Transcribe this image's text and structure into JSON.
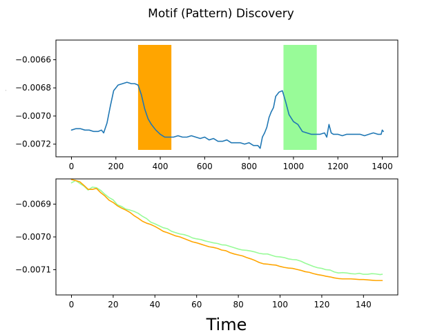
{
  "figure": {
    "suptitle": "Motif (Pattern) Discovery",
    "bottom_xlabel": "Time",
    "top_ylabel_fragment": "EEG"
  },
  "colors": {
    "series": "#1f77b4",
    "motif1": "#ffa500",
    "motif2": "#98fb98",
    "axes": "#000000",
    "background": "#ffffff"
  },
  "chart_data": [
    {
      "type": "line",
      "title": "Motif (Pattern) Discovery",
      "xlabel": "",
      "ylabel": "EEG",
      "xlim": [
        -70,
        1470
      ],
      "ylim": [
        -0.00729,
        -0.00646
      ],
      "xticks": [
        0,
        200,
        400,
        600,
        800,
        1000,
        1200,
        1400
      ],
      "xtick_labels": [
        "0",
        "200",
        "400",
        "600",
        "800",
        "1000",
        "1200",
        "1400"
      ],
      "yticks": [
        -0.0072,
        -0.007,
        -0.0068,
        -0.0066
      ],
      "ytick_labels": [
        "−0.0072",
        "−0.0070",
        "−0.0068",
        "−0.0066"
      ],
      "grid": false,
      "highlights": [
        {
          "x_start": 300,
          "x_end": 450,
          "color": "#ffa500"
        },
        {
          "x_start": 955,
          "x_end": 1105,
          "color": "#98fb98"
        }
      ],
      "series": [
        {
          "color": "#1f77b4",
          "x": [
            0,
            20,
            40,
            60,
            80,
            100,
            120,
            135,
            145,
            160,
            175,
            190,
            210,
            230,
            250,
            270,
            285,
            300,
            315,
            330,
            345,
            360,
            380,
            400,
            420,
            440,
            460,
            480,
            500,
            520,
            540,
            560,
            580,
            600,
            620,
            640,
            660,
            680,
            700,
            720,
            740,
            760,
            780,
            800,
            820,
            840,
            850,
            860,
            870,
            880,
            890,
            900,
            910,
            920,
            935,
            950,
            965,
            980,
            1000,
            1020,
            1040,
            1060,
            1080,
            1100,
            1120,
            1140,
            1150,
            1160,
            1170,
            1180,
            1200,
            1220,
            1240,
            1260,
            1280,
            1300,
            1320,
            1340,
            1360,
            1380,
            1395,
            1400,
            1405
          ],
          "y": [
            -0.0071,
            -0.00709,
            -0.00709,
            -0.0071,
            -0.0071,
            -0.00711,
            -0.00711,
            -0.0071,
            -0.00712,
            -0.00705,
            -0.00693,
            -0.00682,
            -0.00678,
            -0.00677,
            -0.00676,
            -0.00677,
            -0.00677,
            -0.00678,
            -0.00685,
            -0.00695,
            -0.00702,
            -0.00706,
            -0.0071,
            -0.00713,
            -0.00715,
            -0.00715,
            -0.00715,
            -0.00714,
            -0.00715,
            -0.00715,
            -0.00714,
            -0.00715,
            -0.00716,
            -0.00715,
            -0.00717,
            -0.00716,
            -0.00718,
            -0.00718,
            -0.00717,
            -0.00719,
            -0.00719,
            -0.00719,
            -0.0072,
            -0.00719,
            -0.00721,
            -0.00721,
            -0.00723,
            -0.00715,
            -0.00712,
            -0.00708,
            -0.00701,
            -0.00697,
            -0.00694,
            -0.00686,
            -0.00683,
            -0.00682,
            -0.0069,
            -0.00699,
            -0.00704,
            -0.00706,
            -0.00711,
            -0.00712,
            -0.00713,
            -0.00713,
            -0.00713,
            -0.00712,
            -0.00715,
            -0.00706,
            -0.00712,
            -0.00713,
            -0.00713,
            -0.00714,
            -0.00713,
            -0.00713,
            -0.00713,
            -0.00713,
            -0.00714,
            -0.00713,
            -0.00712,
            -0.00713,
            -0.00713,
            -0.0071,
            -0.00711
          ]
        }
      ]
    },
    {
      "type": "line",
      "title": "",
      "xlabel": "Time",
      "ylabel": "",
      "xlim": [
        -7.45,
        156.45
      ],
      "ylim": [
        -0.007177,
        -0.006823
      ],
      "xticks": [
        0,
        20,
        40,
        60,
        80,
        100,
        120,
        140
      ],
      "xtick_labels": [
        "0",
        "20",
        "40",
        "60",
        "80",
        "100",
        "120",
        "140"
      ],
      "yticks": [
        -0.0071,
        -0.007,
        -0.0069
      ],
      "ytick_labels": [
        "−0.0071",
        "−0.0070",
        "−0.0069"
      ],
      "grid": false,
      "series": [
        {
          "color": "#98fb98",
          "x": [
            0,
            2,
            4,
            6,
            8,
            10,
            12,
            14,
            16,
            18,
            20,
            22,
            24,
            26,
            28,
            30,
            32,
            34,
            36,
            38,
            40,
            42,
            44,
            46,
            48,
            50,
            52,
            54,
            56,
            58,
            60,
            62,
            64,
            66,
            68,
            70,
            72,
            74,
            76,
            78,
            80,
            82,
            84,
            86,
            88,
            90,
            92,
            94,
            96,
            98,
            100,
            102,
            104,
            106,
            108,
            110,
            112,
            114,
            116,
            118,
            120,
            122,
            124,
            126,
            128,
            130,
            132,
            134,
            136,
            138,
            140,
            142,
            144,
            146,
            148,
            149
          ],
          "y": [
            -0.006835,
            -0.006828,
            -0.006837,
            -0.006845,
            -0.006857,
            -0.006848,
            -0.00685,
            -0.006858,
            -0.00687,
            -0.00688,
            -0.006887,
            -0.006902,
            -0.006907,
            -0.006915,
            -0.006918,
            -0.006922,
            -0.006928,
            -0.006937,
            -0.006944,
            -0.006955,
            -0.00696,
            -0.006966,
            -0.006972,
            -0.006975,
            -0.006983,
            -0.006987,
            -0.006991,
            -0.006993,
            -0.006997,
            -0.007003,
            -0.007006,
            -0.007008,
            -0.007012,
            -0.007015,
            -0.007018,
            -0.00702,
            -0.007024,
            -0.007025,
            -0.007029,
            -0.007033,
            -0.007037,
            -0.00704,
            -0.007041,
            -0.007043,
            -0.007046,
            -0.00705,
            -0.007052,
            -0.007052,
            -0.007056,
            -0.00706,
            -0.007061,
            -0.007063,
            -0.007067,
            -0.007069,
            -0.00707,
            -0.007074,
            -0.00708,
            -0.007085,
            -0.00709,
            -0.007094,
            -0.007096,
            -0.0071,
            -0.007101,
            -0.007107,
            -0.00711,
            -0.007109,
            -0.00711,
            -0.007112,
            -0.007113,
            -0.007111,
            -0.007114,
            -0.007114,
            -0.007112,
            -0.007113,
            -0.007115,
            -0.007114
          ]
        },
        {
          "color": "#ffa500",
          "x": [
            0,
            2,
            4,
            6,
            8,
            10,
            12,
            14,
            16,
            18,
            20,
            22,
            24,
            26,
            28,
            30,
            32,
            34,
            36,
            38,
            40,
            42,
            44,
            46,
            48,
            50,
            52,
            54,
            56,
            58,
            60,
            62,
            64,
            66,
            68,
            70,
            72,
            74,
            76,
            78,
            80,
            82,
            84,
            86,
            88,
            90,
            92,
            94,
            96,
            98,
            100,
            102,
            104,
            106,
            108,
            110,
            112,
            114,
            116,
            118,
            120,
            122,
            124,
            126,
            128,
            130,
            132,
            134,
            136,
            138,
            140,
            142,
            144,
            146,
            148,
            149
          ],
          "y": [
            -0.006825,
            -0.006828,
            -0.006832,
            -0.006843,
            -0.006855,
            -0.006855,
            -0.006852,
            -0.006865,
            -0.006875,
            -0.006888,
            -0.006895,
            -0.006905,
            -0.006912,
            -0.006918,
            -0.006925,
            -0.006935,
            -0.006943,
            -0.006952,
            -0.006958,
            -0.006962,
            -0.006968,
            -0.006975,
            -0.006983,
            -0.006987,
            -0.006992,
            -0.006997,
            -0.007,
            -0.007005,
            -0.00701,
            -0.007015,
            -0.007018,
            -0.007022,
            -0.007026,
            -0.00703,
            -0.007032,
            -0.007035,
            -0.00704,
            -0.007042,
            -0.007048,
            -0.007052,
            -0.007055,
            -0.007058,
            -0.007063,
            -0.007067,
            -0.007072,
            -0.007078,
            -0.007082,
            -0.007083,
            -0.007085,
            -0.007086,
            -0.00709,
            -0.007093,
            -0.007095,
            -0.007096,
            -0.007099,
            -0.007102,
            -0.007106,
            -0.007108,
            -0.007112,
            -0.007115,
            -0.007117,
            -0.00712,
            -0.007122,
            -0.007125,
            -0.007127,
            -0.007128,
            -0.007128,
            -0.007128,
            -0.007129,
            -0.00713,
            -0.00713,
            -0.007131,
            -0.007132,
            -0.007133,
            -0.007133,
            -0.007133
          ]
        }
      ]
    }
  ]
}
